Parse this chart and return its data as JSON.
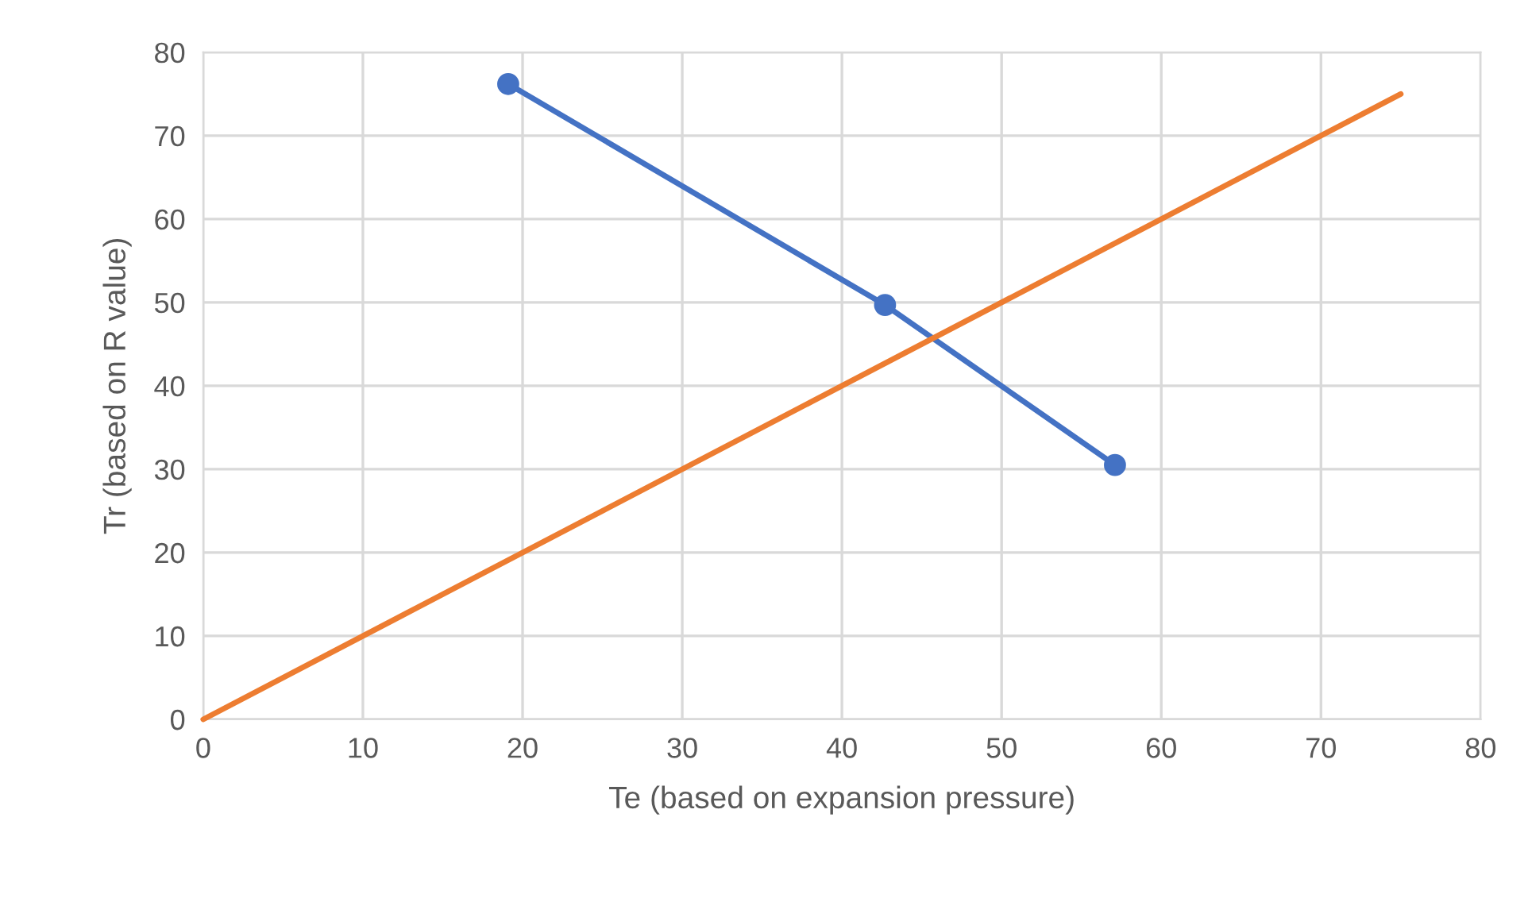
{
  "chart_data": {
    "type": "line",
    "xlabel": "Te (based on expansion pressure)",
    "ylabel": "Tr (based on R value)",
    "xlim": [
      0,
      80
    ],
    "xticks": [
      0,
      10,
      20,
      30,
      40,
      50,
      60,
      70,
      80
    ],
    "ylim": [
      0,
      80
    ],
    "yticks": [
      0,
      10,
      20,
      30,
      40,
      50,
      60,
      70,
      80
    ],
    "grid": true,
    "series": [
      {
        "color": "#4472c4",
        "marker": "circle",
        "x": [
          19.1,
          42.7,
          57.1
        ],
        "values": [
          76.2,
          49.7,
          30.5
        ]
      },
      {
        "color": "#ed7d31",
        "marker": "none",
        "x": [
          0,
          75
        ],
        "values": [
          0,
          75
        ]
      }
    ]
  }
}
